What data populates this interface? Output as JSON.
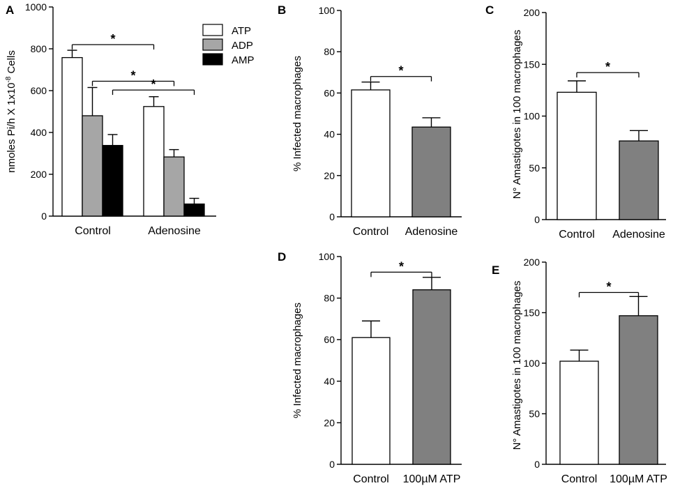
{
  "chart_data": [
    {
      "panel": "A",
      "type": "bar",
      "ylabel": "nmoles Pi/h X 1x10",
      "ylabel_sup": "-8",
      "ylabel_suffix": " Cells",
      "ylim": [
        0,
        1000
      ],
      "yticks": [
        "0",
        "200",
        "400",
        "600",
        "800",
        "1000"
      ],
      "categories": [
        "Control",
        "Adenosine"
      ],
      "series": [
        {
          "name": "ATP",
          "color": "#ffffff",
          "values": [
            758,
            524
          ],
          "errors": [
            35,
            47
          ]
        },
        {
          "name": "ADP",
          "color": "#a6a6a6",
          "values": [
            480,
            283
          ],
          "errors": [
            135,
            35
          ]
        },
        {
          "name": "AMP",
          "color": "#000000",
          "values": [
            338,
            58
          ],
          "errors": [
            52,
            27
          ]
        }
      ],
      "significance": [
        {
          "label": "*",
          "from_series": 0,
          "from_cat": 0,
          "to_series": 0,
          "to_cat": 1,
          "y": 820
        },
        {
          "label": "*",
          "from_series": 1,
          "from_cat": 0,
          "to_series": 1,
          "to_cat": 1,
          "y": 645
        },
        {
          "label": "*",
          "from_series": 2,
          "from_cat": 0,
          "to_series": 2,
          "to_cat": 1,
          "y": 603
        }
      ]
    },
    {
      "panel": "B",
      "type": "bar",
      "ylabel": "% Infected macrophages",
      "ylim": [
        0,
        100
      ],
      "yticks": [
        "0",
        "20",
        "40",
        "60",
        "80",
        "100"
      ],
      "categories": [
        "Control",
        "Adenosine"
      ],
      "values": [
        61.5,
        43.5
      ],
      "errors": [
        3.8,
        4.5
      ],
      "colors": [
        "#ffffff",
        "#808080"
      ],
      "significance": [
        {
          "label": "*",
          "y": 68
        }
      ]
    },
    {
      "panel": "C",
      "type": "bar",
      "ylabel": "N° Amastigotes in 100 macrophages",
      "ylim": [
        0,
        200
      ],
      "yticks": [
        "0",
        "50",
        "100",
        "150",
        "200"
      ],
      "categories": [
        "Control",
        "Adenosine"
      ],
      "values": [
        123,
        76
      ],
      "errors": [
        11,
        10
      ],
      "colors": [
        "#ffffff",
        "#808080"
      ],
      "significance": [
        {
          "label": "*",
          "y": 142
        }
      ]
    },
    {
      "panel": "D",
      "type": "bar",
      "ylabel": "% Infected macrophages",
      "ylim": [
        0,
        100
      ],
      "yticks": [
        "0",
        "20",
        "40",
        "60",
        "80",
        "100"
      ],
      "categories": [
        "Control",
        "100µM ATP"
      ],
      "values": [
        61,
        84
      ],
      "errors": [
        8,
        6
      ],
      "colors": [
        "#ffffff",
        "#808080"
      ],
      "significance": [
        {
          "label": "*",
          "y": 92.5
        }
      ]
    },
    {
      "panel": "E",
      "type": "bar",
      "ylabel": "N° Amastigotes in 100 macrophages",
      "ylim": [
        0,
        200
      ],
      "yticks": [
        "0",
        "50",
        "100",
        "150",
        "200"
      ],
      "categories": [
        "Control",
        "100µM ATP"
      ],
      "values": [
        102,
        147
      ],
      "errors": [
        11,
        19
      ],
      "colors": [
        "#ffffff",
        "#808080"
      ],
      "significance": [
        {
          "label": "*",
          "y": 170
        }
      ]
    }
  ]
}
